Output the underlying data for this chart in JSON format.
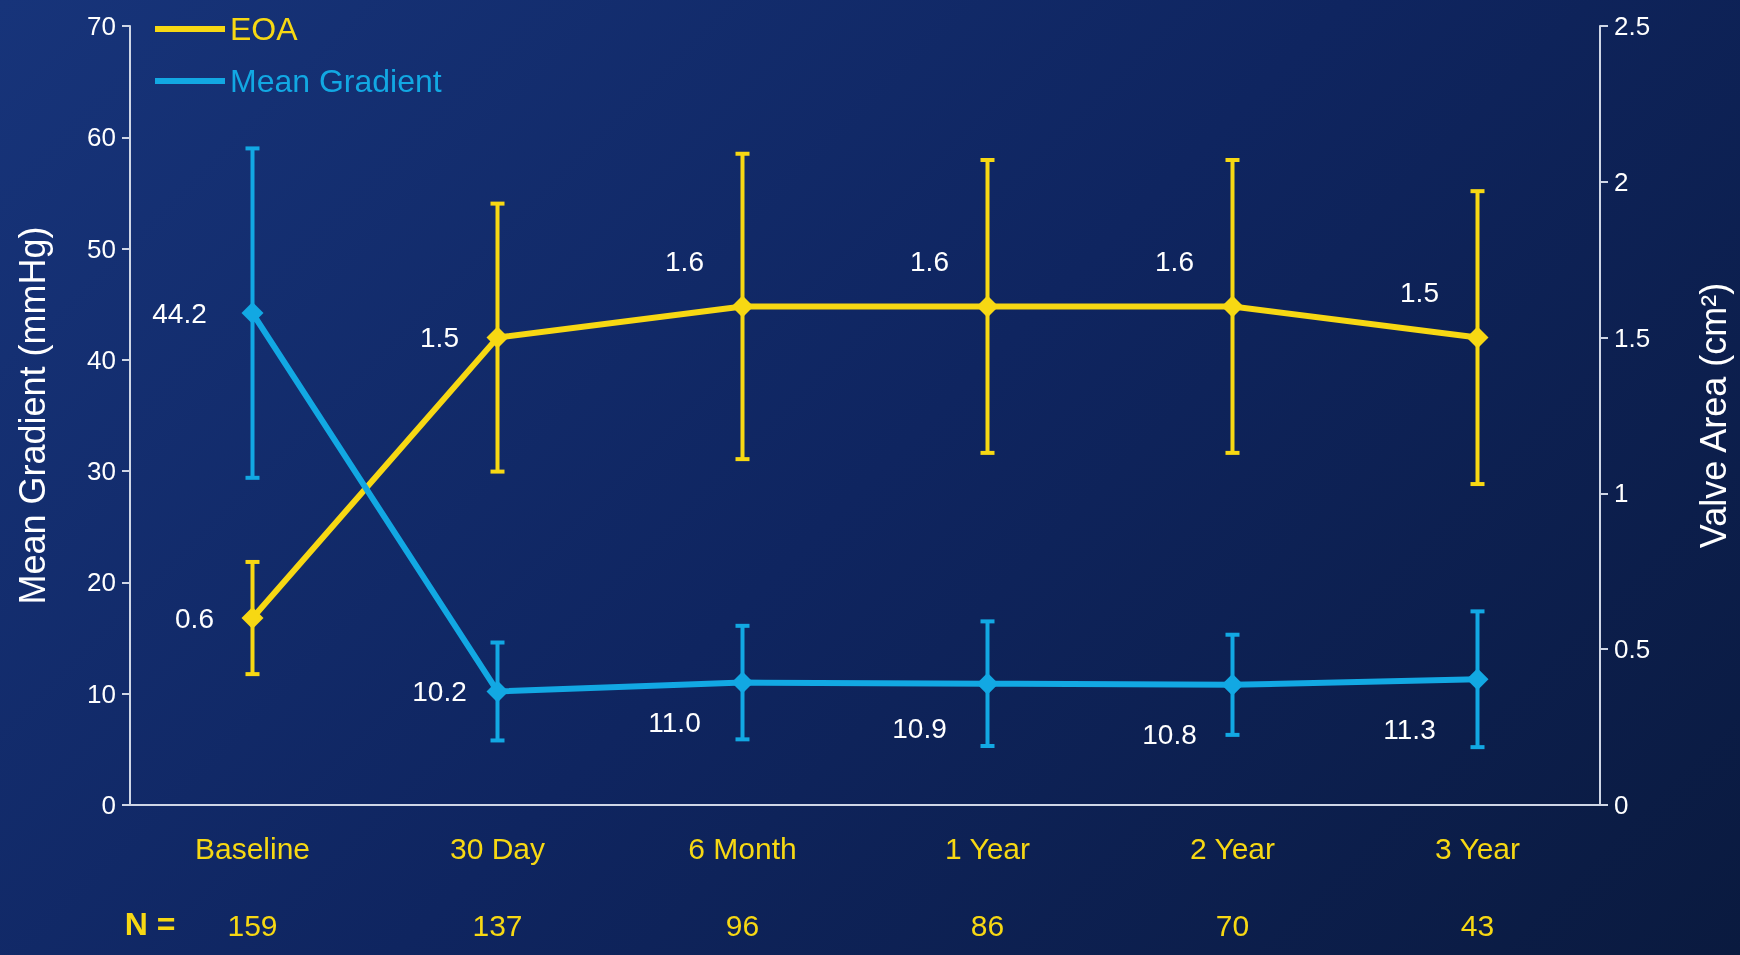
{
  "chart_data": {
    "type": "line",
    "categories": [
      "Baseline",
      "30 Day",
      "6 Month",
      "1 Year",
      "2 Year",
      "3 Year"
    ],
    "ylabel": "Mean Gradient (mmHg)",
    "y2label": "Valve Area (cm²)",
    "ylim": [
      0,
      70
    ],
    "yticks": [
      0,
      10,
      20,
      30,
      40,
      50,
      60,
      70
    ],
    "y2lim": [
      0,
      2.5
    ],
    "y2ticks": [
      0,
      0.5,
      1,
      1.5,
      2,
      2.5
    ],
    "legend": "top left",
    "grid": false,
    "marker": "diamond",
    "line_style": "solid",
    "series": [
      {
        "name": "EOA",
        "color": "#f7d813",
        "axis": "y2",
        "values": [
          0.6,
          1.5,
          1.6,
          1.6,
          1.6,
          1.5
        ],
        "errors": [
          0.18,
          0.43,
          0.49,
          0.47,
          0.47,
          0.47
        ],
        "value_labels": [
          "0.6",
          "1.5",
          "1.6",
          "1.6",
          "1.6",
          "1.5"
        ]
      },
      {
        "name": "Mean Gradient",
        "color": "#12a8e3",
        "values": [
          44.2,
          10.2,
          11.0,
          10.9,
          10.8,
          11.3
        ],
        "errors": [
          14.8,
          4.4,
          5.1,
          5.6,
          4.5,
          6.1
        ],
        "value_labels": [
          "44.2",
          "10.2",
          "11.0",
          "10.9",
          "10.8",
          "11.3"
        ]
      }
    ],
    "annotations": [
      "N =",
      "159",
      "137",
      "96",
      "86",
      "70",
      "43"
    ]
  }
}
